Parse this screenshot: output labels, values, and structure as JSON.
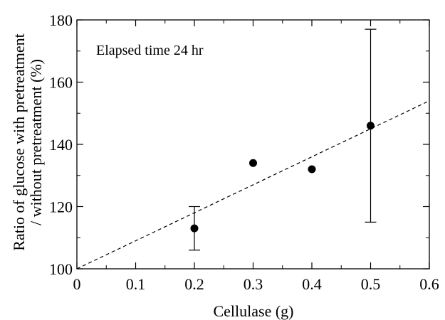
{
  "chart_data": {
    "type": "scatter",
    "annotation": "Elapsed time 24 hr",
    "xlabel": "Cellulase (g)",
    "ylabel_lines": [
      "Ratio of glucose with pretreatment",
      "/ without pretreatment (%)"
    ],
    "xlim": [
      0,
      0.6
    ],
    "ylim": [
      100,
      180
    ],
    "x_ticks": [
      "0",
      "0.1",
      "0.2",
      "0.3",
      "0.4",
      "0.5",
      "0.6"
    ],
    "y_ticks": [
      "100",
      "120",
      "140",
      "160",
      "180"
    ],
    "grid": false,
    "series": [
      {
        "points": [
          {
            "x": 0.2,
            "y": 113,
            "err_low": 106,
            "err_high": 120
          },
          {
            "x": 0.3,
            "y": 134
          },
          {
            "x": 0.4,
            "y": 132
          },
          {
            "x": 0.5,
            "y": 146,
            "err_low": 115,
            "err_high": 177
          }
        ]
      }
    ],
    "trendline": {
      "style": "dashed",
      "x": [
        0,
        0.6
      ],
      "y": [
        100,
        154
      ]
    },
    "colors": {
      "marker": "#000000",
      "axis": "#000000",
      "trendline": "#000000"
    }
  }
}
